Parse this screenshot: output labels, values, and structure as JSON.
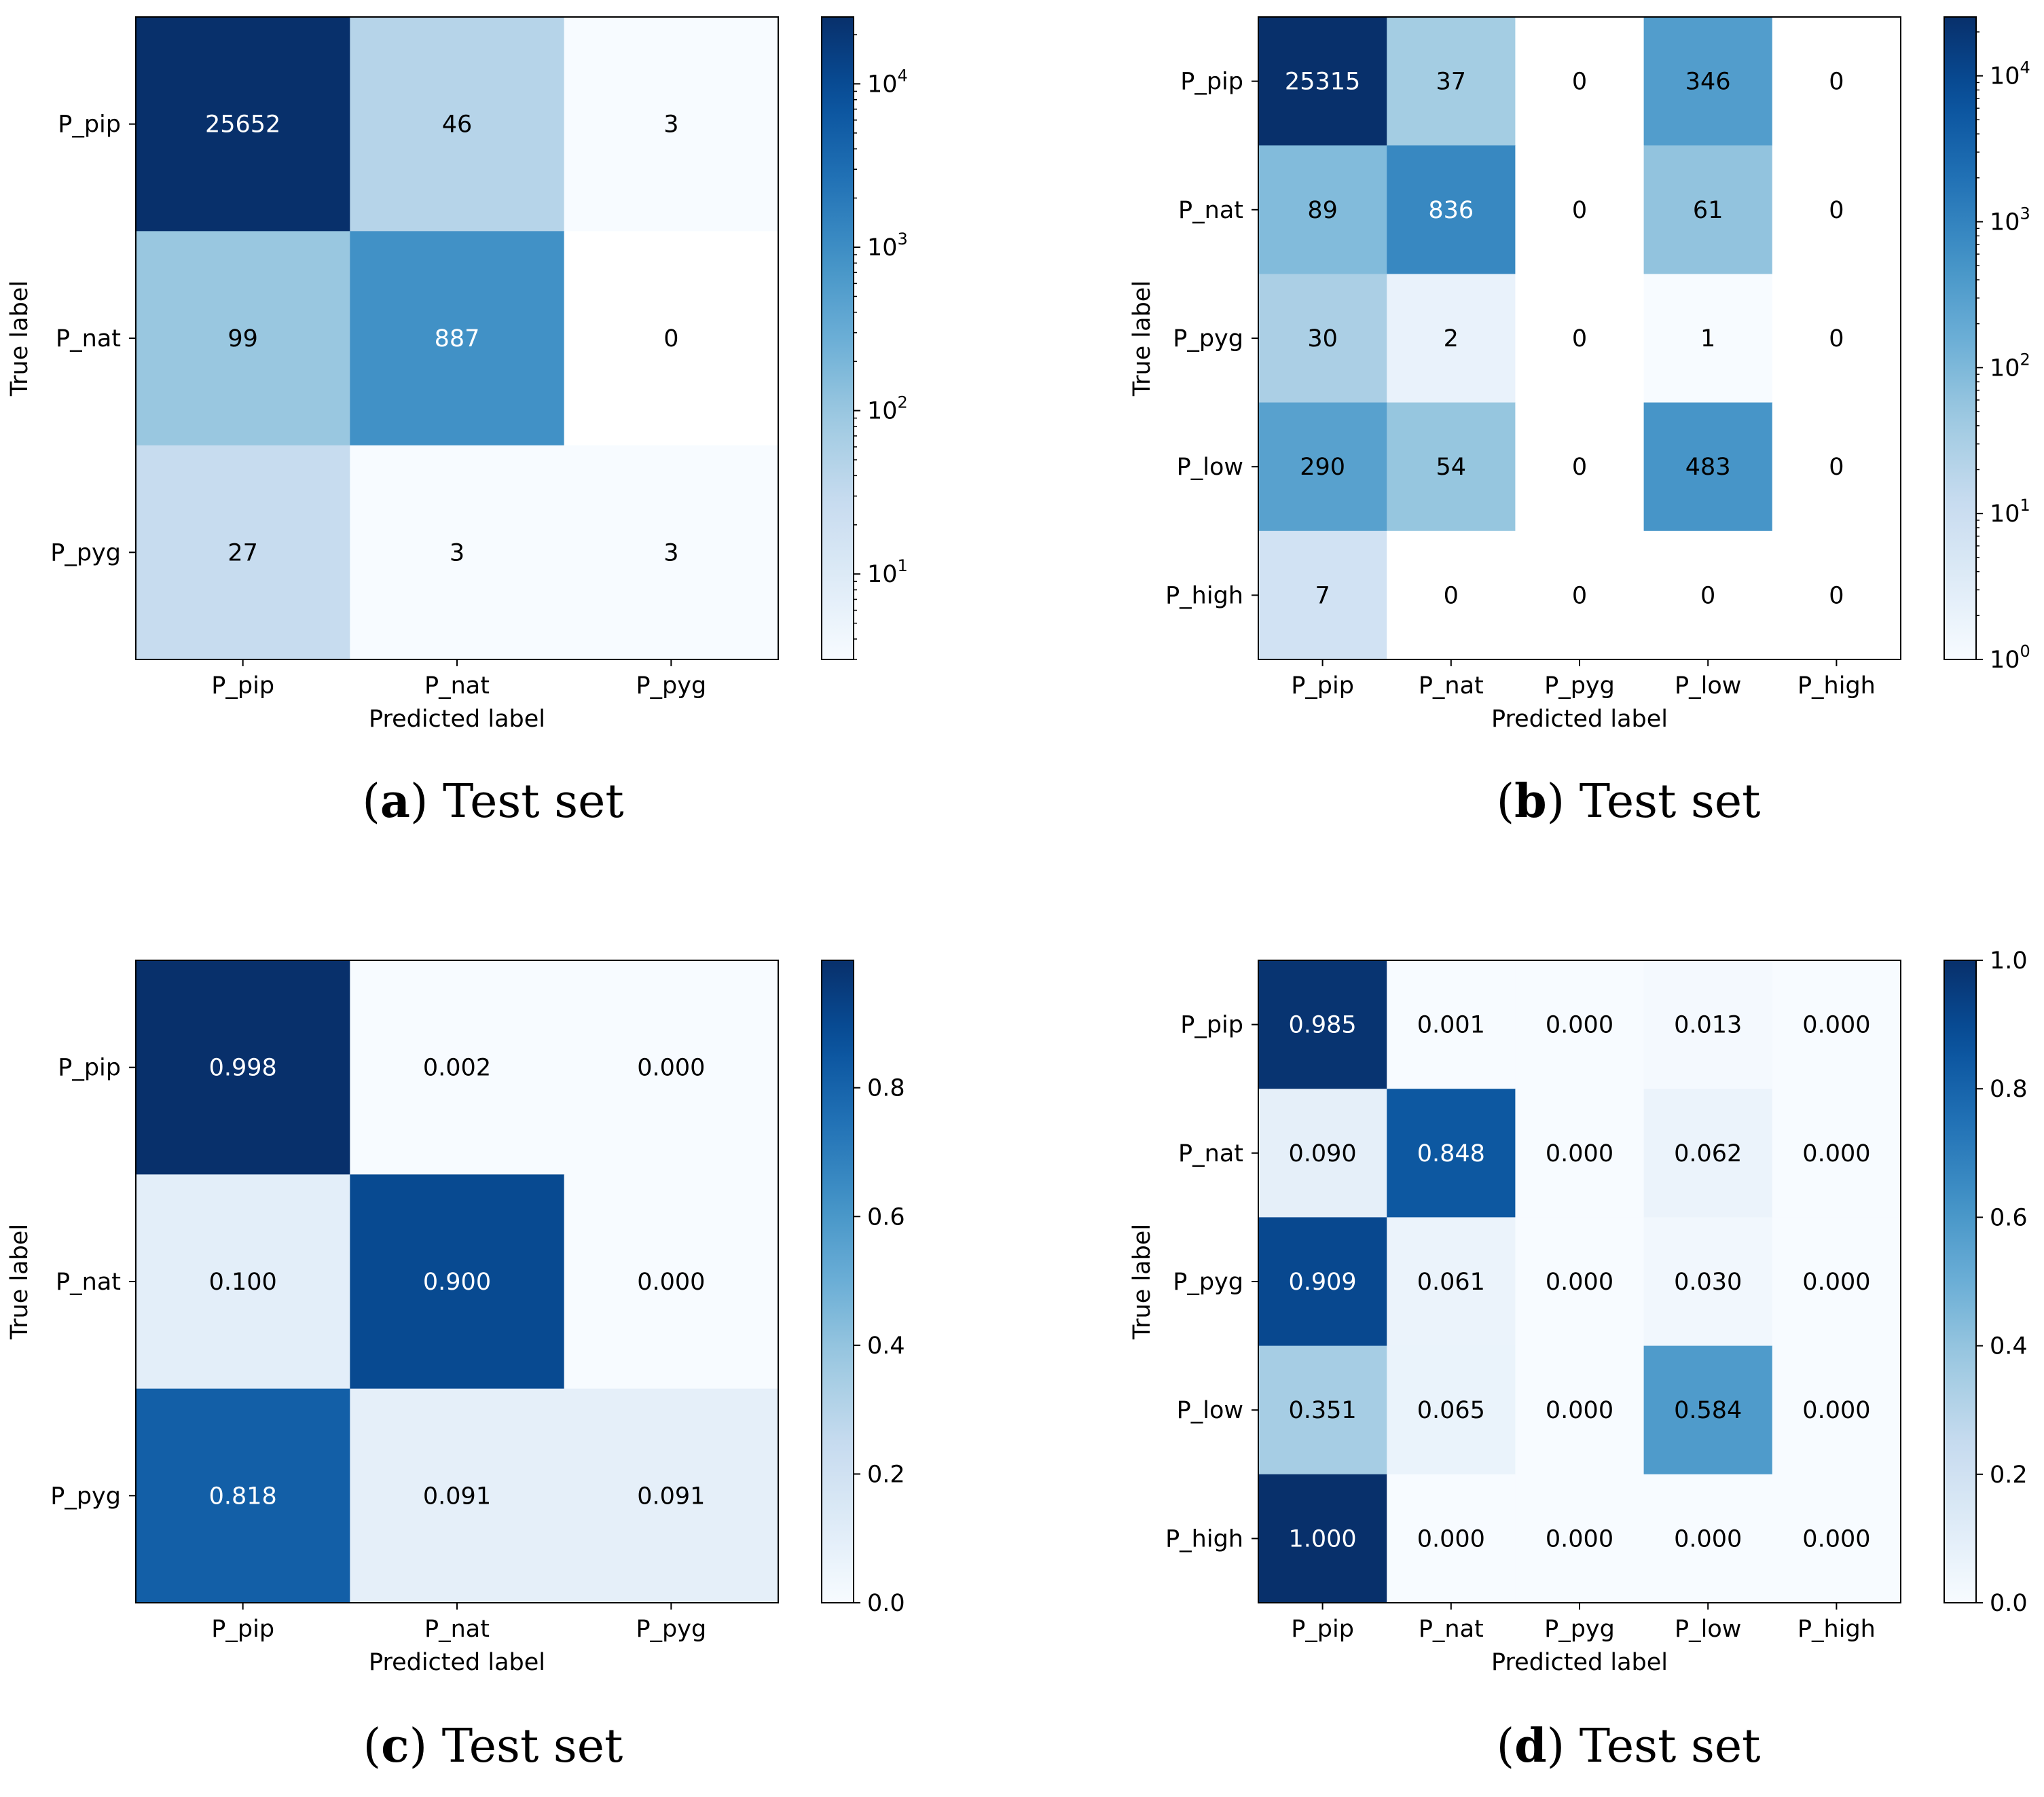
{
  "chart_data": [
    {
      "type": "heatmap",
      "panel": "a",
      "caption_letter": "a",
      "caption_text": "Test set",
      "xlabel": "Predicted label",
      "ylabel": "True label",
      "x_categories": [
        "P_pip",
        "P_nat",
        "P_pyg"
      ],
      "y_categories": [
        "P_pip",
        "P_nat",
        "P_pyg"
      ],
      "values": [
        [
          25652,
          46,
          3
        ],
        [
          99,
          887,
          0
        ],
        [
          27,
          3,
          3
        ]
      ],
      "cell_labels": [
        [
          "25652",
          "46",
          "3"
        ],
        [
          "99",
          "887",
          "0"
        ],
        [
          "27",
          "3",
          "3"
        ]
      ],
      "scale": "log",
      "colormap": "Blues",
      "vmin": 3,
      "vmax": 25652,
      "colorbar_ticks": [
        {
          "value": 10,
          "base": "10",
          "exp": "1"
        },
        {
          "value": 100,
          "base": "10",
          "exp": "2"
        },
        {
          "value": 1000,
          "base": "10",
          "exp": "3"
        },
        {
          "value": 10000,
          "base": "10",
          "exp": "4"
        }
      ]
    },
    {
      "type": "heatmap",
      "panel": "b",
      "caption_letter": "b",
      "caption_text": "Test set",
      "xlabel": "Predicted label",
      "ylabel": "True label",
      "x_categories": [
        "P_pip",
        "P_nat",
        "P_pyg",
        "P_low",
        "P_high"
      ],
      "y_categories": [
        "P_pip",
        "P_nat",
        "P_pyg",
        "P_low",
        "P_high"
      ],
      "values": [
        [
          25315,
          37,
          0,
          346,
          0
        ],
        [
          89,
          836,
          0,
          61,
          0
        ],
        [
          30,
          2,
          0,
          1,
          0
        ],
        [
          290,
          54,
          0,
          483,
          0
        ],
        [
          7,
          0,
          0,
          0,
          0
        ]
      ],
      "cell_labels": [
        [
          "25315",
          "37",
          "0",
          "346",
          "0"
        ],
        [
          "89",
          "836",
          "0",
          "61",
          "0"
        ],
        [
          "30",
          "2",
          "0",
          "1",
          "0"
        ],
        [
          "290",
          "54",
          "0",
          "483",
          "0"
        ],
        [
          "7",
          "0",
          "0",
          "0",
          "0"
        ]
      ],
      "scale": "log",
      "colormap": "Blues",
      "vmin": 1,
      "vmax": 25315,
      "colorbar_ticks": [
        {
          "value": 1,
          "base": "10",
          "exp": "0"
        },
        {
          "value": 10,
          "base": "10",
          "exp": "1"
        },
        {
          "value": 100,
          "base": "10",
          "exp": "2"
        },
        {
          "value": 1000,
          "base": "10",
          "exp": "3"
        },
        {
          "value": 10000,
          "base": "10",
          "exp": "4"
        }
      ]
    },
    {
      "type": "heatmap",
      "panel": "c",
      "caption_letter": "c",
      "caption_text": "Test set",
      "xlabel": "Predicted label",
      "ylabel": "True label",
      "x_categories": [
        "P_pip",
        "P_nat",
        "P_pyg"
      ],
      "y_categories": [
        "P_pip",
        "P_nat",
        "P_pyg"
      ],
      "values": [
        [
          0.998,
          0.002,
          0.0
        ],
        [
          0.1,
          0.9,
          0.0
        ],
        [
          0.818,
          0.091,
          0.091
        ]
      ],
      "cell_labels": [
        [
          "0.998",
          "0.002",
          "0.000"
        ],
        [
          "0.100",
          "0.900",
          "0.000"
        ],
        [
          "0.818",
          "0.091",
          "0.091"
        ]
      ],
      "scale": "linear",
      "colormap": "Blues",
      "vmin": 0,
      "vmax": 0.998,
      "colorbar_ticks": [
        {
          "value": 0.0,
          "label": "0.0"
        },
        {
          "value": 0.2,
          "label": "0.2"
        },
        {
          "value": 0.4,
          "label": "0.4"
        },
        {
          "value": 0.6,
          "label": "0.6"
        },
        {
          "value": 0.8,
          "label": "0.8"
        }
      ]
    },
    {
      "type": "heatmap",
      "panel": "d",
      "caption_letter": "d",
      "caption_text": "Test set",
      "xlabel": "Predicted label",
      "ylabel": "True label",
      "x_categories": [
        "P_pip",
        "P_nat",
        "P_pyg",
        "P_low",
        "P_high"
      ],
      "y_categories": [
        "P_pip",
        "P_nat",
        "P_pyg",
        "P_low",
        "P_high"
      ],
      "values": [
        [
          0.985,
          0.001,
          0.0,
          0.013,
          0.0
        ],
        [
          0.09,
          0.848,
          0.0,
          0.062,
          0.0
        ],
        [
          0.909,
          0.061,
          0.0,
          0.03,
          0.0
        ],
        [
          0.351,
          0.065,
          0.0,
          0.584,
          0.0
        ],
        [
          1.0,
          0.0,
          0.0,
          0.0,
          0.0
        ]
      ],
      "cell_labels": [
        [
          "0.985",
          "0.001",
          "0.000",
          "0.013",
          "0.000"
        ],
        [
          "0.090",
          "0.848",
          "0.000",
          "0.062",
          "0.000"
        ],
        [
          "0.909",
          "0.061",
          "0.000",
          "0.030",
          "0.000"
        ],
        [
          "0.351",
          "0.065",
          "0.000",
          "0.584",
          "0.000"
        ],
        [
          "1.000",
          "0.000",
          "0.000",
          "0.000",
          "0.000"
        ]
      ],
      "scale": "linear",
      "colormap": "Blues",
      "vmin": 0,
      "vmax": 1.0,
      "colorbar_ticks": [
        {
          "value": 0.0,
          "label": "0.0"
        },
        {
          "value": 0.2,
          "label": "0.2"
        },
        {
          "value": 0.4,
          "label": "0.4"
        },
        {
          "value": 0.6,
          "label": "0.6"
        },
        {
          "value": 0.8,
          "label": "0.8"
        },
        {
          "value": 1.0,
          "label": "1.0"
        }
      ]
    }
  ]
}
